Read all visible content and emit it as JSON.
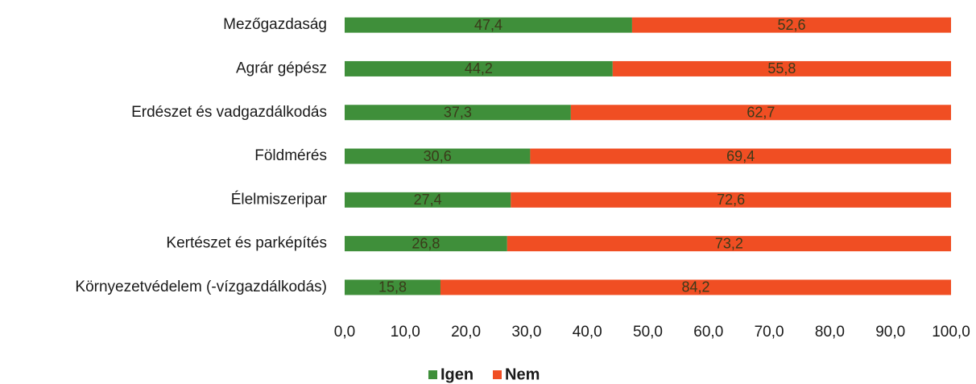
{
  "chart_data": {
    "type": "stacked_barh",
    "categories": [
      "Mezőgazdaság",
      "Agrár gépész",
      "Erdészet és vadgazdálkodás",
      "Földmérés",
      "Élelmiszeripar",
      "Kertészet és parképítés",
      "Környezetvédelem (-vízgazdálkodás)"
    ],
    "series": [
      {
        "name": "Igen",
        "color": "#3f8f3a",
        "values": [
          47.4,
          44.2,
          37.3,
          30.6,
          27.4,
          26.8,
          15.8
        ],
        "value_labels": [
          "47,4",
          "44,2",
          "37,3",
          "30,6",
          "27,4",
          "26,8",
          "15,8"
        ]
      },
      {
        "name": "Nem",
        "color": "#f04e23",
        "values": [
          52.6,
          55.8,
          62.7,
          69.4,
          72.6,
          73.2,
          84.2
        ],
        "value_labels": [
          "52,6",
          "55,8",
          "62,7",
          "69,4",
          "72,6",
          "73,2",
          "84,2"
        ]
      }
    ],
    "xlim": [
      0,
      100
    ],
    "xticks": [
      {
        "value": 0,
        "label": "0,0"
      },
      {
        "value": 10,
        "label": "10,0"
      },
      {
        "value": 20,
        "label": "20,0"
      },
      {
        "value": 30,
        "label": "30,0"
      },
      {
        "value": 40,
        "label": "40,0"
      },
      {
        "value": 50,
        "label": "50,0"
      },
      {
        "value": 60,
        "label": "60,0"
      },
      {
        "value": 70,
        "label": "70,0"
      },
      {
        "value": 80,
        "label": "80,0"
      },
      {
        "value": 90,
        "label": "90,0"
      },
      {
        "value": 100,
        "label": "100,0"
      }
    ],
    "legend": "bottom"
  }
}
